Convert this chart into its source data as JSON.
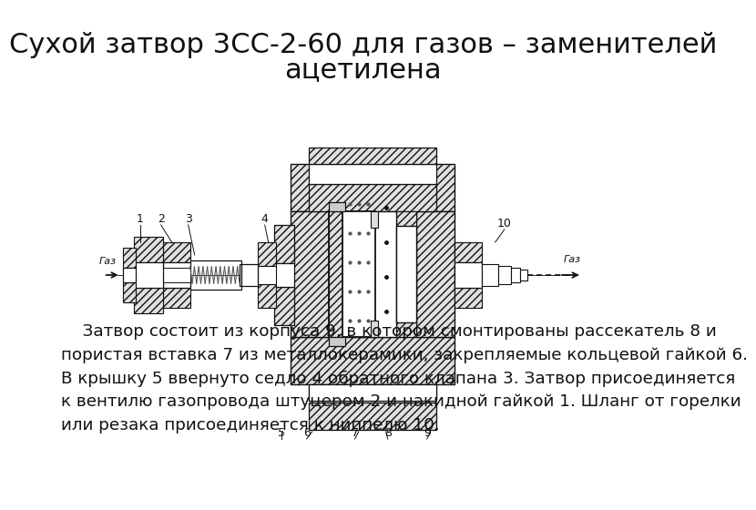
{
  "title_line1": "Сухой затвор 3СС-2-60 для газов – заменителей",
  "title_line2": "ацетилена",
  "body_text": "    Затвор состоит из корпуса 9, в котором смонтированы рассекатель 8 и\nпористая вставка 7 из металлокерамики, закрепляемые кольцевой гайкой 6.\nВ крышку 5 ввернуто седло 4 обратного клапана 3. Затвор присоединяется\nк вентилю газопровода штуцером 2 и накидной гайкой 1. Шланг от горелки\nили резака присоединяется к ниппелю 10.",
  "bg_color": "#ffffff",
  "title_fontsize": 22,
  "body_fontsize": 13.2,
  "text_color": "#1a1a1a",
  "diag_lw": 1.0,
  "hatch_color": "#333333",
  "dark_color": "#111111"
}
